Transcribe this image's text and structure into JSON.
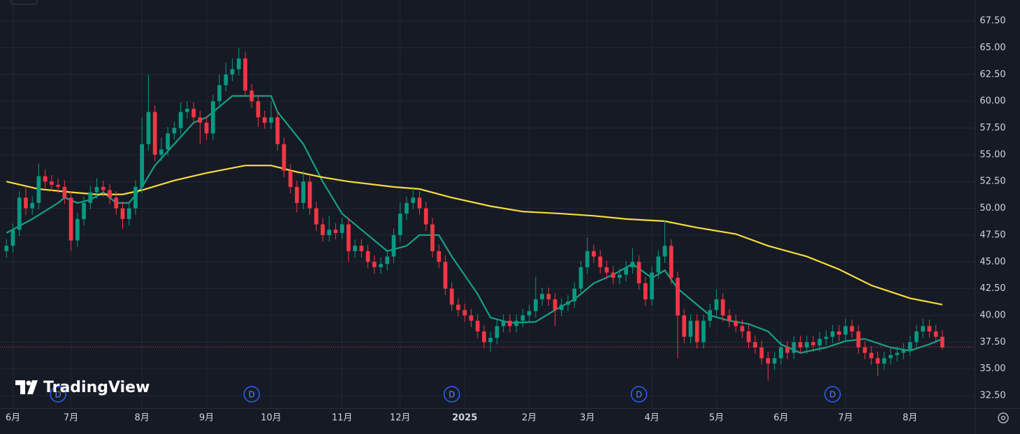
{
  "chart_data": {
    "type": "candlestick",
    "watermark": "TradingView",
    "up_color": "#089981",
    "down_color": "#f23645",
    "grid": true,
    "xlim": [
      -1,
      150
    ],
    "ylim": [
      31.33,
      69.46
    ],
    "xticks": [
      {
        "value": 1,
        "label": "6月"
      },
      {
        "value": 10,
        "label": "7月"
      },
      {
        "value": 21,
        "label": "8月"
      },
      {
        "value": 31,
        "label": "9月"
      },
      {
        "value": 41,
        "label": "10月"
      },
      {
        "value": 52,
        "label": "11月"
      },
      {
        "value": 61,
        "label": "12月"
      },
      {
        "value": 71,
        "label": "2025"
      },
      {
        "value": 81,
        "label": "2月"
      },
      {
        "value": 90,
        "label": "3月"
      },
      {
        "value": 100,
        "label": "4月"
      },
      {
        "value": 110,
        "label": "5月"
      },
      {
        "value": 120,
        "label": "6月"
      },
      {
        "value": 130,
        "label": "7月"
      },
      {
        "value": 140,
        "label": "8月"
      }
    ],
    "yticks": [
      {
        "value": 32.5,
        "label": "32.50"
      },
      {
        "value": 35,
        "label": "35.00"
      },
      {
        "value": 37.5,
        "label": "37.50"
      },
      {
        "value": 40,
        "label": "40.00"
      },
      {
        "value": 42.5,
        "label": "42.50"
      },
      {
        "value": 45,
        "label": "45.00"
      },
      {
        "value": 47.5,
        "label": "47.50"
      },
      {
        "value": 50,
        "label": "50.00"
      },
      {
        "value": 52.5,
        "label": "52.50"
      },
      {
        "value": 55,
        "label": "55.00"
      },
      {
        "value": 57.5,
        "label": "57.50"
      },
      {
        "value": 60,
        "label": "60.00"
      },
      {
        "value": 62.5,
        "label": "62.50"
      },
      {
        "value": 65,
        "label": "65.00"
      },
      {
        "value": 67.5,
        "label": "67.50"
      }
    ],
    "open": [
      46,
      46.5,
      48,
      51,
      50,
      50.5,
      53,
      52.5,
      52.2,
      52,
      51,
      47,
      49,
      50.5,
      51.5,
      52,
      51.7,
      51,
      50,
      49,
      50,
      52,
      56,
      59,
      55,
      55.5,
      57,
      57.5,
      59,
      59.3,
      58.5,
      58,
      57,
      60,
      61.5,
      62.5,
      63,
      64,
      61,
      60,
      58.5,
      58,
      58.5,
      56,
      53.5,
      52,
      50.5,
      52.5,
      50,
      48.5,
      47.5,
      48,
      47.7,
      48.5,
      46,
      46.5,
      46,
      45,
      44.5,
      44.8,
      45.5,
      47.5,
      49.5,
      50.5,
      51,
      50,
      48.5,
      46,
      45,
      42.5,
      41,
      40.5,
      40,
      39.5,
      38.5,
      37.5,
      37.9,
      39,
      39.5,
      39,
      39.5,
      40,
      40.4,
      41.5,
      42,
      41.5,
      40.5,
      41,
      41.3,
      42.5,
      44.5,
      46,
      45.5,
      44.5,
      44,
      43.5,
      43.8,
      44.5,
      45,
      43,
      41.5,
      44,
      45.5,
      46.5,
      43.5,
      40,
      38,
      39.5,
      37.5,
      39.5,
      40.5,
      41.5,
      40,
      39.5,
      39,
      38.5,
      37.5,
      37,
      36,
      35.5,
      36,
      37,
      36.5,
      37.5,
      37,
      37.5,
      37.2,
      37.8,
      38,
      38.5,
      38.2,
      39,
      38.5,
      37,
      36.5,
      36,
      35.5,
      36,
      36.3,
      36.5,
      36.8,
      37.5,
      38.5,
      39,
      38.5,
      38
    ],
    "high": [
      47.1,
      48.6,
      51.6,
      52.0,
      51.1,
      54.2,
      53.6,
      53.1,
      52.8,
      52.6,
      51.6,
      49.6,
      51.1,
      52.1,
      52.8,
      52.6,
      52.3,
      51.6,
      50.6,
      50.6,
      52.6,
      58.5,
      62.5,
      59.6,
      56.6,
      57.6,
      58.1,
      59.9,
      60.0,
      59.9,
      59.1,
      58.6,
      60.6,
      62.5,
      63.6,
      64.0,
      65.0,
      64.6,
      61.6,
      60.6,
      59.1,
      60.0,
      59.1,
      56.6,
      54.1,
      52.6,
      53.5,
      53.1,
      50.6,
      49.1,
      49.3,
      48.6,
      49.1,
      49.1,
      47.1,
      47.1,
      46.6,
      45.6,
      45.4,
      46.1,
      48.1,
      50.6,
      51.1,
      52.0,
      51.6,
      50.6,
      49.1,
      46.6,
      45.6,
      43.1,
      41.6,
      41.1,
      40.6,
      40.1,
      39.1,
      38.5,
      39.6,
      40.1,
      40.1,
      40.1,
      40.6,
      41.0,
      43.6,
      42.6,
      42.6,
      42.1,
      41.6,
      41.9,
      43.1,
      45.1,
      47.3,
      46.6,
      46.1,
      45.1,
      44.6,
      44.4,
      45.1,
      46.3,
      45.6,
      43.6,
      44.6,
      46.1,
      48.9,
      47.1,
      44.1,
      40.6,
      40.1,
      40.1,
      40.1,
      41.1,
      42.4,
      42.1,
      40.6,
      40.1,
      39.6,
      39.1,
      38.1,
      37.6,
      36.6,
      36.6,
      37.6,
      37.6,
      38.1,
      38.1,
      38.1,
      38.1,
      38.4,
      38.6,
      39.1,
      39.1,
      39.7,
      39.6,
      39.1,
      37.6,
      37.1,
      36.6,
      36.6,
      36.9,
      37.1,
      37.4,
      38.1,
      39.1,
      39.7,
      39.6,
      39.1,
      38.6
    ],
    "low": [
      45.4,
      45.9,
      47.4,
      49.4,
      49.4,
      49.9,
      51.9,
      51.6,
      51.4,
      50.4,
      46.0,
      46.4,
      48.4,
      49.9,
      50.9,
      51.1,
      50.4,
      49.4,
      48.1,
      48.4,
      49.4,
      51.4,
      55.4,
      54.4,
      54.4,
      54.9,
      56.4,
      56.9,
      58.4,
      57.9,
      56.0,
      56.4,
      56.4,
      59.4,
      60.9,
      61.9,
      62.4,
      60.4,
      59.4,
      57.6,
      57.4,
      57.4,
      55.4,
      52.9,
      51.4,
      49.6,
      49.9,
      49.4,
      47.9,
      46.9,
      46.9,
      47.1,
      47.1,
      45.0,
      45.4,
      45.4,
      44.4,
      43.9,
      43.9,
      44.2,
      44.9,
      46.9,
      48.9,
      49.9,
      49.4,
      47.9,
      45.4,
      44.4,
      41.9,
      40.4,
      39.9,
      39.4,
      38.9,
      37.9,
      36.9,
      36.6,
      37.3,
      38.4,
      38.4,
      38.4,
      38.9,
      39.4,
      39.8,
      40.9,
      40.9,
      39.0,
      39.9,
      40.4,
      40.7,
      41.9,
      43.9,
      44.9,
      43.9,
      43.4,
      42.9,
      42.9,
      43.2,
      43.9,
      42.4,
      40.9,
      40.9,
      43.4,
      44.9,
      42.9,
      36.0,
      37.4,
      37.4,
      36.9,
      36.9,
      38.9,
      39.9,
      39.4,
      38.9,
      38.4,
      37.9,
      36.9,
      36.4,
      35.4,
      33.9,
      34.9,
      35.4,
      35.9,
      35.9,
      36.4,
      36.4,
      36.6,
      36.6,
      37.2,
      37.4,
      37.6,
      37.6,
      37.9,
      36.4,
      35.9,
      35.4,
      34.3,
      34.9,
      35.4,
      35.7,
      35.9,
      36.2,
      36.9,
      37.9,
      37.9,
      37.4,
      36.8
    ],
    "close": [
      46.5,
      48,
      51,
      50,
      50.5,
      53,
      52.5,
      52.2,
      52,
      51,
      47,
      49,
      50.5,
      51.5,
      52,
      51.7,
      51,
      50,
      49,
      50,
      52,
      56,
      59,
      55,
      55.5,
      57,
      57.5,
      59,
      59.3,
      58.5,
      58,
      57,
      60,
      61.5,
      62.5,
      63,
      64,
      61,
      60,
      58.5,
      58,
      58.5,
      56,
      53.5,
      52,
      50.5,
      52.5,
      50,
      48.5,
      47.5,
      48,
      47.7,
      48.5,
      46,
      46.5,
      46,
      45,
      44.5,
      44.8,
      45.5,
      47.5,
      49.5,
      50.5,
      51,
      50,
      48.5,
      46,
      45,
      42.5,
      41,
      40.5,
      40,
      39.5,
      38.5,
      37.5,
      37.9,
      39,
      39.5,
      39,
      39.5,
      40,
      40.4,
      41.5,
      42,
      41.5,
      40.5,
      41,
      41.3,
      42.5,
      44.5,
      46,
      45.5,
      44.5,
      44,
      43.5,
      43.8,
      44.5,
      45,
      43,
      41.5,
      44,
      45.5,
      46.5,
      43.5,
      40,
      38,
      39.5,
      37.5,
      39.5,
      40.5,
      41.5,
      40,
      39.5,
      39,
      38.5,
      37.5,
      37,
      36,
      35.5,
      36,
      37,
      36.5,
      37.5,
      37,
      37.5,
      37.2,
      37.8,
      38,
      38.5,
      38.2,
      39,
      38.5,
      37,
      36.5,
      36,
      35.5,
      36,
      36.3,
      36.5,
      36.8,
      37.5,
      38.5,
      39,
      38.5,
      38,
      37
    ],
    "lines": [
      {
        "color": "#17a085",
        "x": [
          0,
          4,
          8,
          9,
          11,
          13,
          15,
          17,
          19,
          21,
          23,
          26,
          29,
          31,
          35,
          38,
          41,
          42,
          46,
          49,
          52,
          55,
          59,
          62,
          64,
          67,
          69,
          73,
          75,
          78,
          82,
          85,
          88,
          91,
          94,
          97,
          100,
          102,
          104,
          107,
          109,
          112,
          115,
          118,
          120,
          123,
          127,
          130,
          133,
          137,
          140,
          143,
          145
        ],
        "values": [
          47.7,
          49,
          50.5,
          51,
          50.5,
          50.8,
          51.5,
          50.5,
          50.5,
          52,
          54,
          56,
          58,
          58.5,
          60.5,
          60.5,
          60.5,
          59,
          56,
          52.5,
          49.5,
          48,
          46,
          46.5,
          47.5,
          47.5,
          45.5,
          42,
          39.8,
          39.3,
          39.4,
          40.5,
          41.5,
          43,
          43.8,
          44.8,
          43.5,
          44.2,
          42.5,
          41,
          40,
          39.5,
          39.2,
          38.5,
          37.3,
          36.5,
          37,
          37.6,
          37.8,
          37,
          36.7,
          37.3,
          37.8
        ]
      },
      {
        "color": "#f5dd3a",
        "x": [
          0,
          5,
          10,
          14,
          18,
          21,
          26,
          31,
          37,
          41,
          45,
          49,
          53,
          60,
          64,
          69,
          75,
          80,
          86,
          91,
          96,
          102,
          107,
          113,
          118,
          124,
          129,
          134,
          140,
          145
        ],
        "values": [
          52.5,
          51.8,
          51.5,
          51.3,
          51.3,
          51.7,
          52.6,
          53.3,
          54.0,
          54.0,
          53.4,
          52.9,
          52.5,
          52.0,
          51.8,
          51.0,
          50.2,
          49.7,
          49.5,
          49.3,
          49.0,
          48.8,
          48.2,
          47.6,
          46.5,
          45.5,
          44.3,
          42.8,
          41.6,
          41.0
        ]
      }
    ],
    "price_line": {
      "value": 37.05,
      "color": "#f23645"
    },
    "events": [
      {
        "x": 8,
        "label": "D"
      },
      {
        "x": 38,
        "label": "D"
      },
      {
        "x": 69,
        "label": "D"
      },
      {
        "x": 98,
        "label": "D"
      },
      {
        "x": 128,
        "label": "D"
      }
    ]
  }
}
